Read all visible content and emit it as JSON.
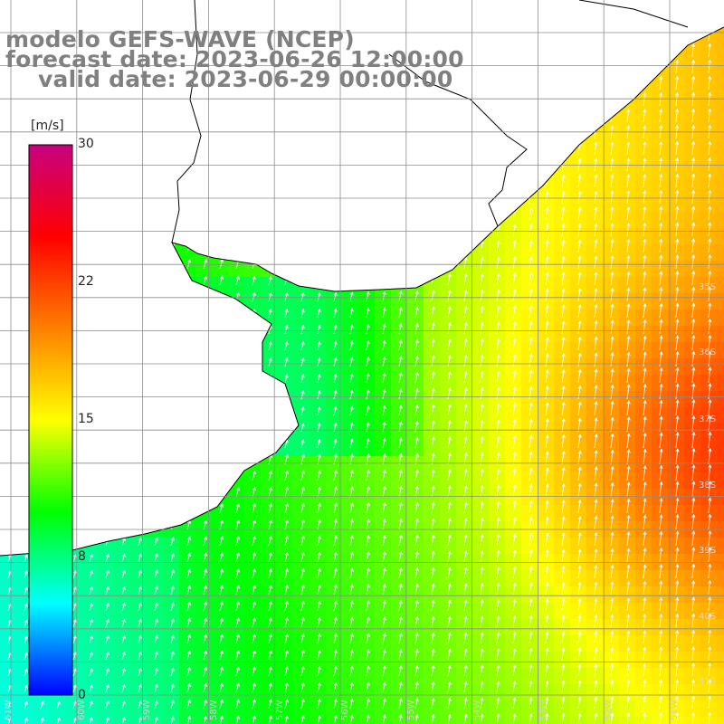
{
  "title": {
    "model": "modelo GEFS-WAVE (NCEP)",
    "forecast": "forecast date: 2023-06-26 12:00:00",
    "valid": "valid date: 2023-06-29 00:00:00"
  },
  "colorbar": {
    "unit": "[m/s]",
    "min": 0,
    "max": 30,
    "ticks": [
      "30",
      "22",
      "15",
      "8",
      "0"
    ],
    "tick_values": [
      30,
      22,
      15,
      8,
      0
    ],
    "colors": [
      "#0000ff",
      "#00ffff",
      "#00ff00",
      "#ffff00",
      "#ff7f00",
      "#ff0000",
      "#c80080"
    ]
  },
  "map": {
    "variable": "wind speed and direction",
    "land_color": "#ffffff",
    "coast_color": "#000000",
    "grid_color": "#8c8c8c",
    "lat_labels": [
      "35S",
      "36S",
      "37S",
      "38S",
      "39S",
      "40S",
      "41S"
    ],
    "lon_labels": [
      "61W",
      "60W",
      "59W",
      "58W",
      "57W",
      "56W",
      "55W",
      "54W",
      "53W",
      "52W",
      "51W"
    ],
    "speed_field_note": "wind speed shaded ~6-10 m/s near coast, 12-15 m/s offshore, 16-18 m/s in southeast"
  }
}
